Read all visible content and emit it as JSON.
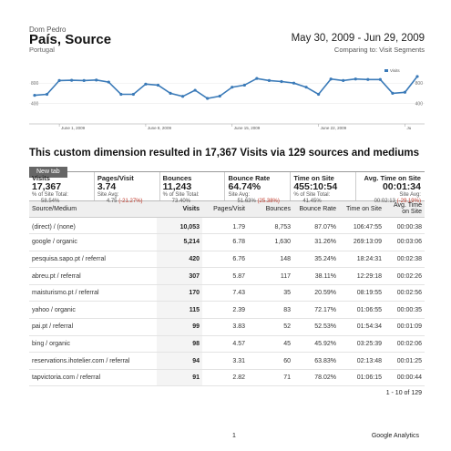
{
  "header": {
    "breadcrumb": "Dom Pedro",
    "title": "País, Source",
    "subtitle": "Portugal",
    "date_range": "May 30, 2009 - Jun 29, 2009",
    "comparing": "Comparing to: Visit Segments"
  },
  "chart_data": {
    "type": "line",
    "legend": "Visits",
    "x_ticks": [
      "June 1, 2009",
      "June 8, 2009",
      "June 15, 2009",
      "June 22, 2009",
      "Ju"
    ],
    "y_ticks_left": [
      "800",
      "400"
    ],
    "y_ticks_right": [
      "800",
      "400"
    ],
    "ylim": [
      0,
      1000
    ],
    "series": [
      {
        "color": "#3a7ab8",
        "values": [
          560,
          580,
          850,
          855,
          850,
          860,
          820,
          580,
          580,
          780,
          760,
          600,
          540,
          660,
          500,
          545,
          720,
          760,
          890,
          850,
          830,
          800,
          720,
          580,
          880,
          850,
          880,
          870,
          870,
          600,
          620,
          930
        ]
      }
    ]
  },
  "summary_text": "This custom dimension resulted in 17,367 Visits via 129 sources and mediums",
  "tab_label": "New tab",
  "metrics": [
    {
      "label": "Visits",
      "value": "17,367",
      "sub1": "% of Site Total:",
      "sub2": "58.54%",
      "neg": ""
    },
    {
      "label": "Pages/Visit",
      "value": "3.74",
      "sub1": "Site Avg:",
      "sub2": "4.75",
      "neg": "(-21.27%)"
    },
    {
      "label": "Bounces",
      "value": "11,243",
      "sub1": "% of Site Total:",
      "sub2": "73.40%",
      "neg": ""
    },
    {
      "label": "Bounce Rate",
      "value": "64.74%",
      "sub1": "Site Avg:",
      "sub2": "51.63%",
      "neg": "(25.38%)"
    },
    {
      "label": "Time on Site",
      "value": "455:10:54",
      "sub1": "% of Site Total:",
      "sub2": "41.45%",
      "neg": ""
    },
    {
      "label": "Avg. Time on Site",
      "value": "00:01:34",
      "sub1": "Site Avg:",
      "sub2": "00:02:13",
      "neg": "(-29.19%)"
    }
  ],
  "table": {
    "headers": [
      "Source/Medium",
      "Visits",
      "Pages/Visit",
      "Bounces",
      "Bounce Rate",
      "Time on Site",
      "Avg. Time on Site"
    ],
    "rows": [
      [
        "(direct) / (none)",
        "10,053",
        "1.79",
        "8,753",
        "87.07%",
        "106:47:55",
        "00:00:38"
      ],
      [
        "google / organic",
        "5,214",
        "6.78",
        "1,630",
        "31.26%",
        "269:13:09",
        "00:03:06"
      ],
      [
        "pesquisa.sapo.pt / referral",
        "420",
        "6.76",
        "148",
        "35.24%",
        "18:24:31",
        "00:02:38"
      ],
      [
        "abreu.pt / referral",
        "307",
        "5.87",
        "117",
        "38.11%",
        "12:29:18",
        "00:02:26"
      ],
      [
        "maisturismo.pt / referral",
        "170",
        "7.43",
        "35",
        "20.59%",
        "08:19:55",
        "00:02:56"
      ],
      [
        "yahoo / organic",
        "115",
        "2.39",
        "83",
        "72.17%",
        "01:06:55",
        "00:00:35"
      ],
      [
        "pai.pt / referral",
        "99",
        "3.83",
        "52",
        "52.53%",
        "01:54:34",
        "00:01:09"
      ],
      [
        "bing / organic",
        "98",
        "4.57",
        "45",
        "45.92%",
        "03:25:39",
        "00:02:06"
      ],
      [
        "reservations.ihotelier.com / referral",
        "94",
        "3.31",
        "60",
        "63.83%",
        "02:13:48",
        "00:01:25"
      ],
      [
        "tapvictoria.com / referral",
        "91",
        "2.82",
        "71",
        "78.02%",
        "01:06:15",
        "00:00:44"
      ]
    ]
  },
  "pager": "1 - 10 of 129",
  "footer": {
    "page_number": "1",
    "brand": "Google Analytics"
  }
}
